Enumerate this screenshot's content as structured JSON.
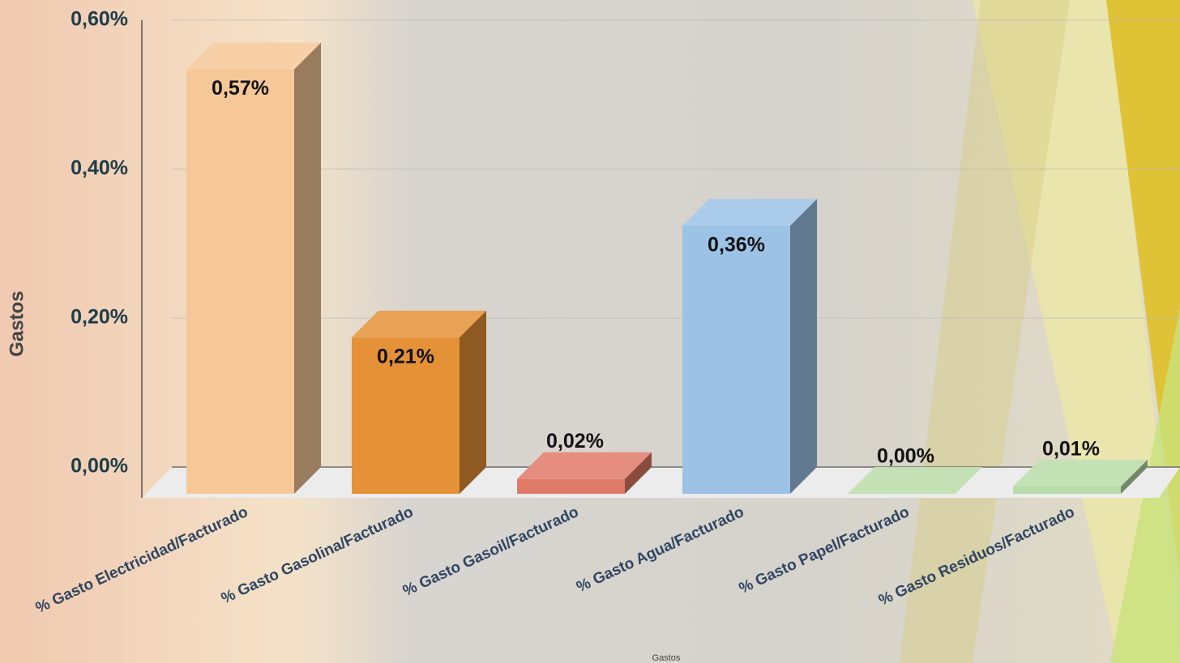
{
  "chart_data": {
    "type": "bar",
    "y_label": "Gastos",
    "x_label": "Gastos",
    "categories": [
      "% Gasto Electricidad/Facturado",
      "% Gasto Gasolina/Facturado",
      "% Gasto Gasoil/Facturado",
      "% Gasto Agua/Facturado",
      "% Gasto Papel/Facturado",
      "% Gasto Residuos/Facturado"
    ],
    "values": [
      0.57,
      0.21,
      0.02,
      0.36,
      0.0,
      0.01
    ],
    "value_labels": [
      "0,57%",
      "0,21%",
      "0,02%",
      "0,36%",
      "0,00%",
      "0,01%"
    ],
    "colors": [
      "#f7c897",
      "#e59137",
      "#e07a68",
      "#9cc3e6",
      "#b8dca8",
      "#b8dca8"
    ],
    "ylim": [
      0,
      0.6
    ],
    "yticks": [
      {
        "value": 0,
        "label": "0,00%"
      },
      {
        "value": 0.2,
        "label": "0,20%"
      },
      {
        "value": 0.4,
        "label": "0,40%"
      },
      {
        "value": 0.6,
        "label": "0,60%"
      }
    ],
    "grid": true
  }
}
